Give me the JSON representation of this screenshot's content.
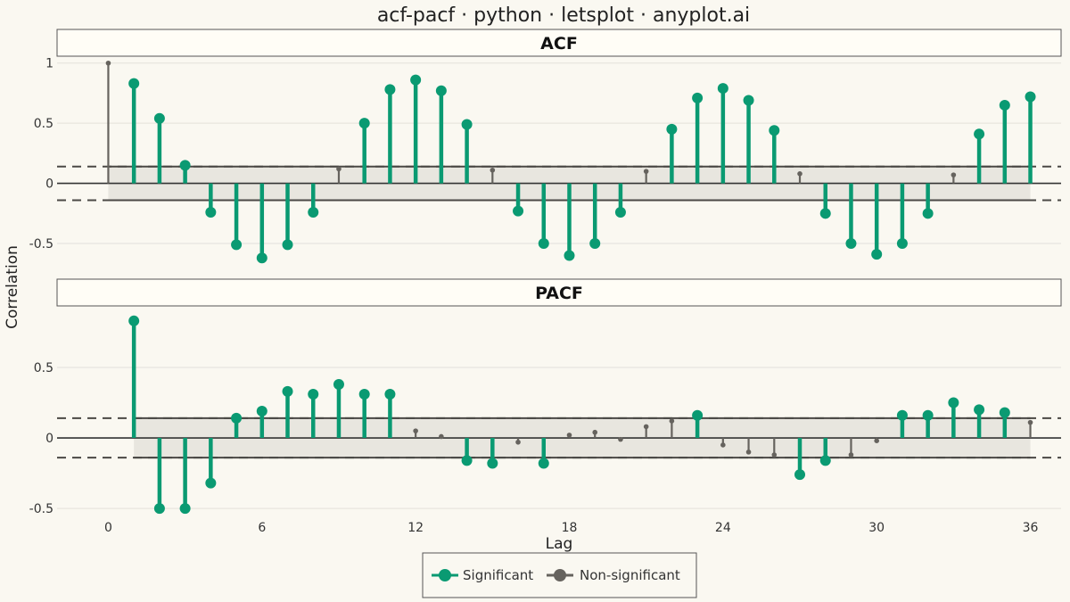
{
  "title": "acf-pacf · python · letsplot · anyplot.ai",
  "chart_data": [
    {
      "type": "stem",
      "panel": "ACF",
      "ylabel": "Correlation",
      "xlabel": "",
      "confidence_band": [
        -0.14,
        0.14
      ],
      "xlim": [
        -2,
        37.2
      ],
      "ylim": [
        -0.7,
        1.05
      ],
      "yticks": [
        -0.5,
        0,
        0.5,
        1
      ],
      "ytick_labels": [
        "-0.5",
        "0",
        "0.5",
        "1"
      ],
      "lags": [
        0,
        1,
        2,
        3,
        4,
        5,
        6,
        7,
        8,
        9,
        10,
        11,
        12,
        13,
        14,
        15,
        16,
        17,
        18,
        19,
        20,
        21,
        22,
        23,
        24,
        25,
        26,
        27,
        28,
        29,
        30,
        31,
        32,
        33,
        34,
        35,
        36
      ],
      "values": [
        1.0,
        0.83,
        0.54,
        0.15,
        -0.24,
        -0.51,
        -0.62,
        -0.51,
        -0.24,
        0.12,
        0.5,
        0.78,
        0.86,
        0.77,
        0.49,
        0.11,
        -0.23,
        -0.5,
        -0.6,
        -0.5,
        -0.24,
        0.1,
        0.45,
        0.71,
        0.79,
        0.69,
        0.44,
        0.08,
        -0.25,
        -0.5,
        -0.59,
        -0.5,
        -0.25,
        0.07,
        0.41,
        0.65,
        0.72
      ],
      "significant": [
        false,
        true,
        true,
        true,
        true,
        true,
        true,
        true,
        true,
        false,
        true,
        true,
        true,
        true,
        true,
        false,
        true,
        true,
        true,
        true,
        true,
        false,
        true,
        true,
        true,
        true,
        true,
        false,
        true,
        true,
        true,
        true,
        true,
        false,
        true,
        true,
        true
      ]
    },
    {
      "type": "stem",
      "panel": "PACF",
      "ylabel": "Correlation",
      "xlabel": "Lag",
      "confidence_band": [
        -0.14,
        0.14
      ],
      "xlim": [
        -2,
        37.2
      ],
      "ylim": [
        -0.55,
        0.93
      ],
      "yticks": [
        -0.5,
        0,
        0.5
      ],
      "ytick_labels": [
        "-0.5",
        "0",
        "0.5"
      ],
      "xticks": [
        0,
        6,
        12,
        18,
        24,
        30,
        36
      ],
      "xtick_labels": [
        "0",
        "6",
        "12",
        "18",
        "24",
        "30",
        "36"
      ],
      "lags": [
        1,
        2,
        3,
        4,
        5,
        6,
        7,
        8,
        9,
        10,
        11,
        12,
        13,
        14,
        15,
        16,
        17,
        18,
        19,
        20,
        21,
        22,
        23,
        24,
        25,
        26,
        27,
        28,
        29,
        30,
        31,
        32,
        33,
        34,
        35,
        36
      ],
      "values": [
        0.83,
        -0.5,
        -0.5,
        -0.32,
        0.14,
        0.19,
        0.33,
        0.31,
        0.38,
        0.31,
        0.31,
        0.05,
        0.01,
        -0.16,
        -0.18,
        -0.03,
        -0.18,
        0.02,
        0.04,
        -0.01,
        0.08,
        0.12,
        0.16,
        -0.05,
        -0.1,
        -0.12,
        -0.26,
        -0.16,
        -0.12,
        -0.02,
        0.16,
        0.16,
        0.25,
        0.2,
        0.18,
        0.11
      ],
      "significant": [
        true,
        true,
        true,
        true,
        true,
        true,
        true,
        true,
        true,
        true,
        true,
        false,
        false,
        true,
        true,
        false,
        true,
        false,
        false,
        false,
        false,
        false,
        true,
        false,
        false,
        false,
        true,
        true,
        false,
        false,
        true,
        true,
        true,
        true,
        true,
        false
      ]
    }
  ],
  "legend": {
    "position": "bottom",
    "items": [
      {
        "label": "Significant",
        "color": "#0A9A72"
      },
      {
        "label": "Non-significant",
        "color": "#66635E"
      }
    ]
  },
  "colors": {
    "background": "#FAF8F1",
    "strip": "#FFFDF6",
    "band": "#E8E6DF",
    "grid": "#E3E1DA",
    "significant": "#0A9A72",
    "nonsignificant": "#66635E"
  }
}
